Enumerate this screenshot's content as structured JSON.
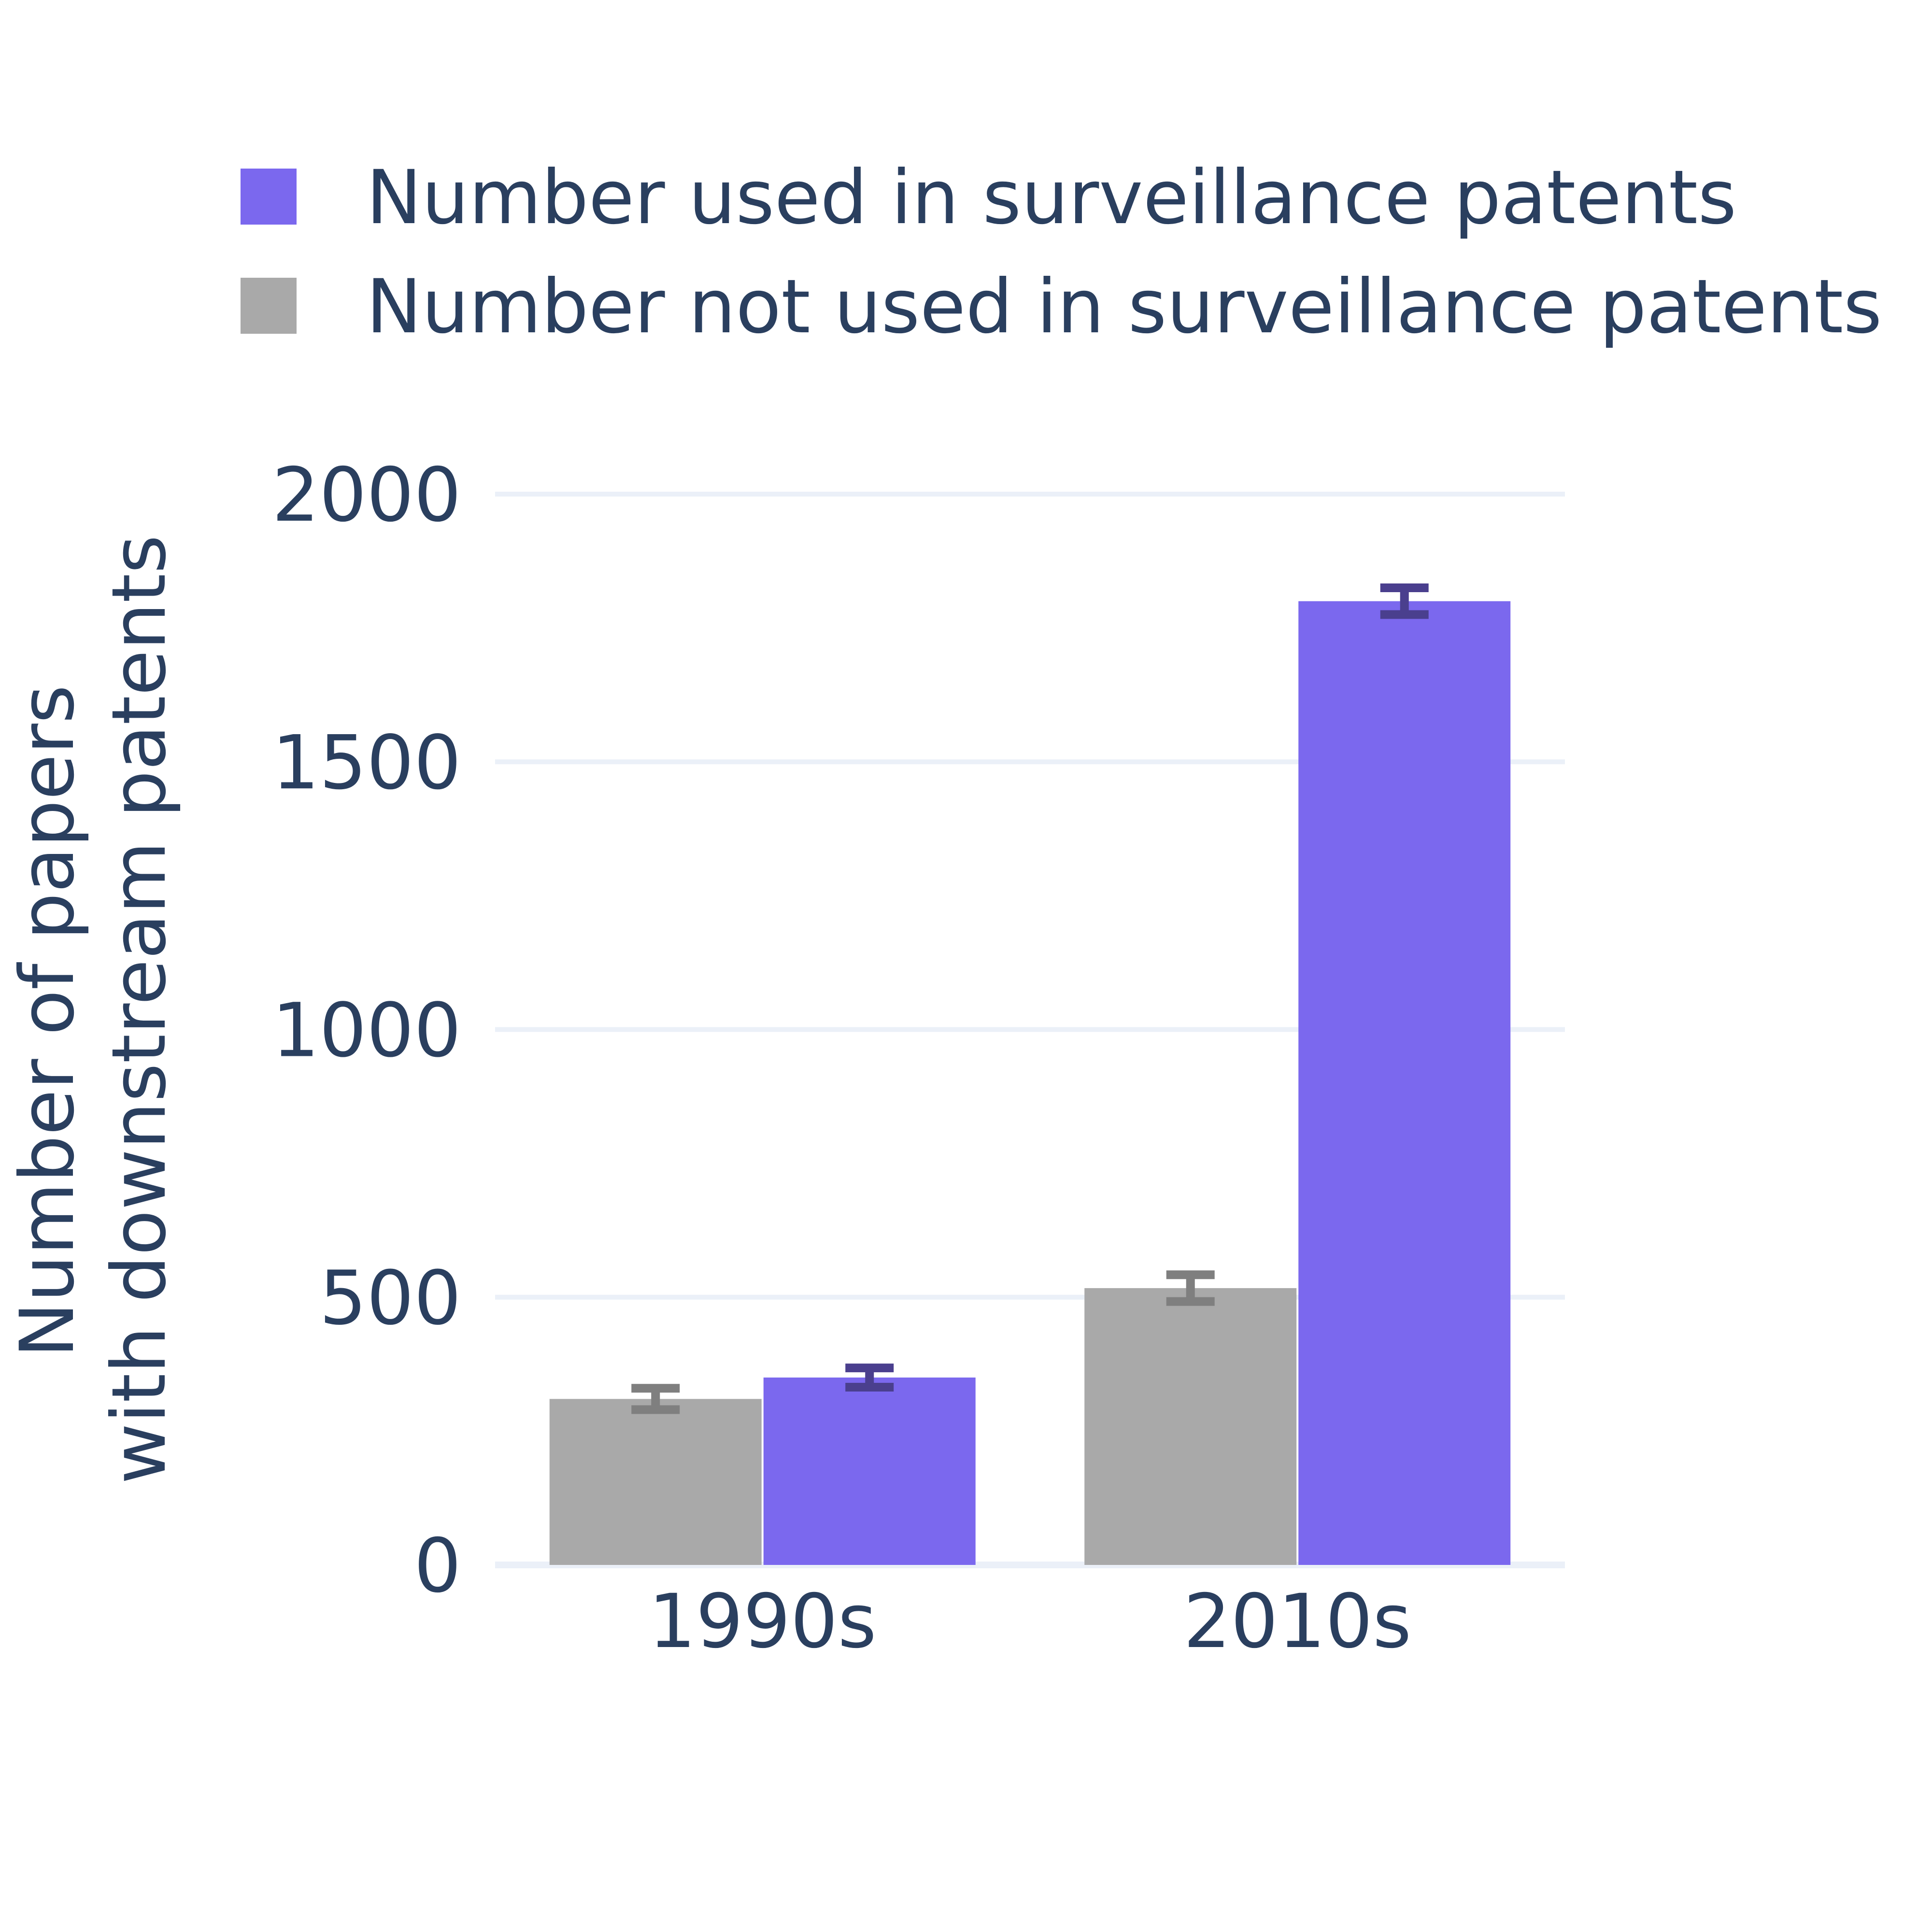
{
  "chart_data": {
    "type": "bar",
    "categories": [
      "1990s",
      "2010s"
    ],
    "series": [
      {
        "name": "Number not used in surveillance patents",
        "color": "#a9a9a9",
        "error_color": "#7f7f7f",
        "values": [
          310,
          517
        ],
        "error": [
          20,
          25
        ]
      },
      {
        "name": "Number used in surveillance patents",
        "color": "#7b68ee",
        "error_color": "#4a3f8e",
        "values": [
          350,
          1800
        ],
        "error": [
          18,
          25
        ]
      }
    ],
    "legend_order": [
      1,
      0
    ],
    "title": "",
    "xlabel": "",
    "ylabel": [
      "Number of papers",
      "with downstream patents"
    ],
    "ylim": [
      0,
      2000
    ],
    "yticks": [
      0,
      500,
      1000,
      1500,
      2000
    ],
    "grid": true,
    "legend_position": "top"
  }
}
